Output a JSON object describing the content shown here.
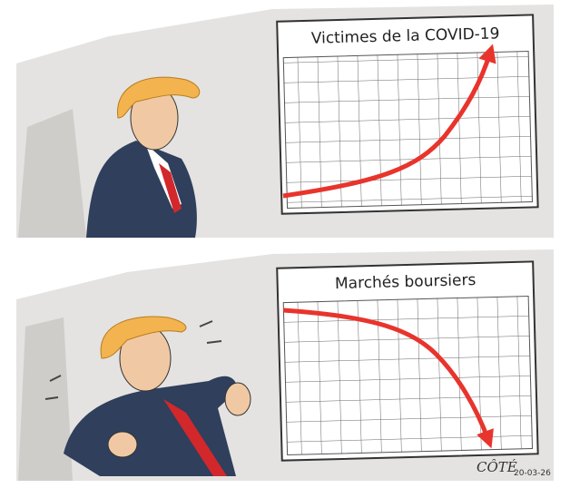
{
  "panels": [
    {
      "chart_title": "Victimes de la COVID-19"
    },
    {
      "chart_title": "Marchés boursiers"
    }
  ],
  "signature": {
    "name": "CÔTÉ",
    "date": "20-03-26"
  }
}
